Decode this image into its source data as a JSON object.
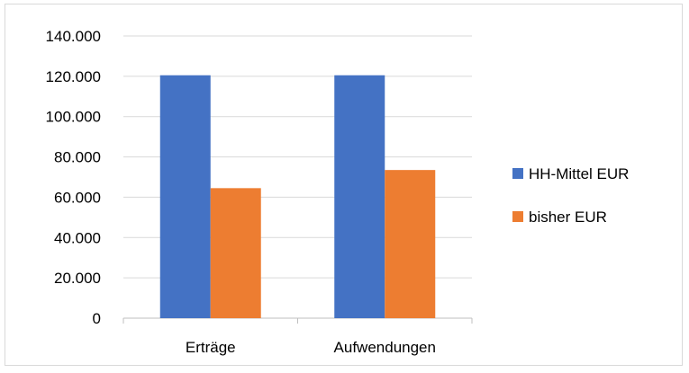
{
  "chart_data": {
    "type": "bar",
    "categories": [
      "Erträge",
      "Aufwendungen"
    ],
    "series": [
      {
        "name": "HH-Mittel EUR",
        "values": [
          120500,
          120500
        ],
        "color": "#4472c4"
      },
      {
        "name": "bisher EUR",
        "values": [
          64500,
          73500
        ],
        "color": "#ed7d31"
      }
    ],
    "ylim": [
      0,
      140000
    ],
    "y_ticks": [
      0,
      20000,
      40000,
      60000,
      80000,
      100000,
      120000,
      140000
    ],
    "y_tick_labels": [
      "0",
      "20.000",
      "40.000",
      "60.000",
      "80.000",
      "100.000",
      "120.000",
      "140.000"
    ],
    "grid": true,
    "legend_position": "right",
    "title": "",
    "xlabel": "",
    "ylabel": ""
  }
}
